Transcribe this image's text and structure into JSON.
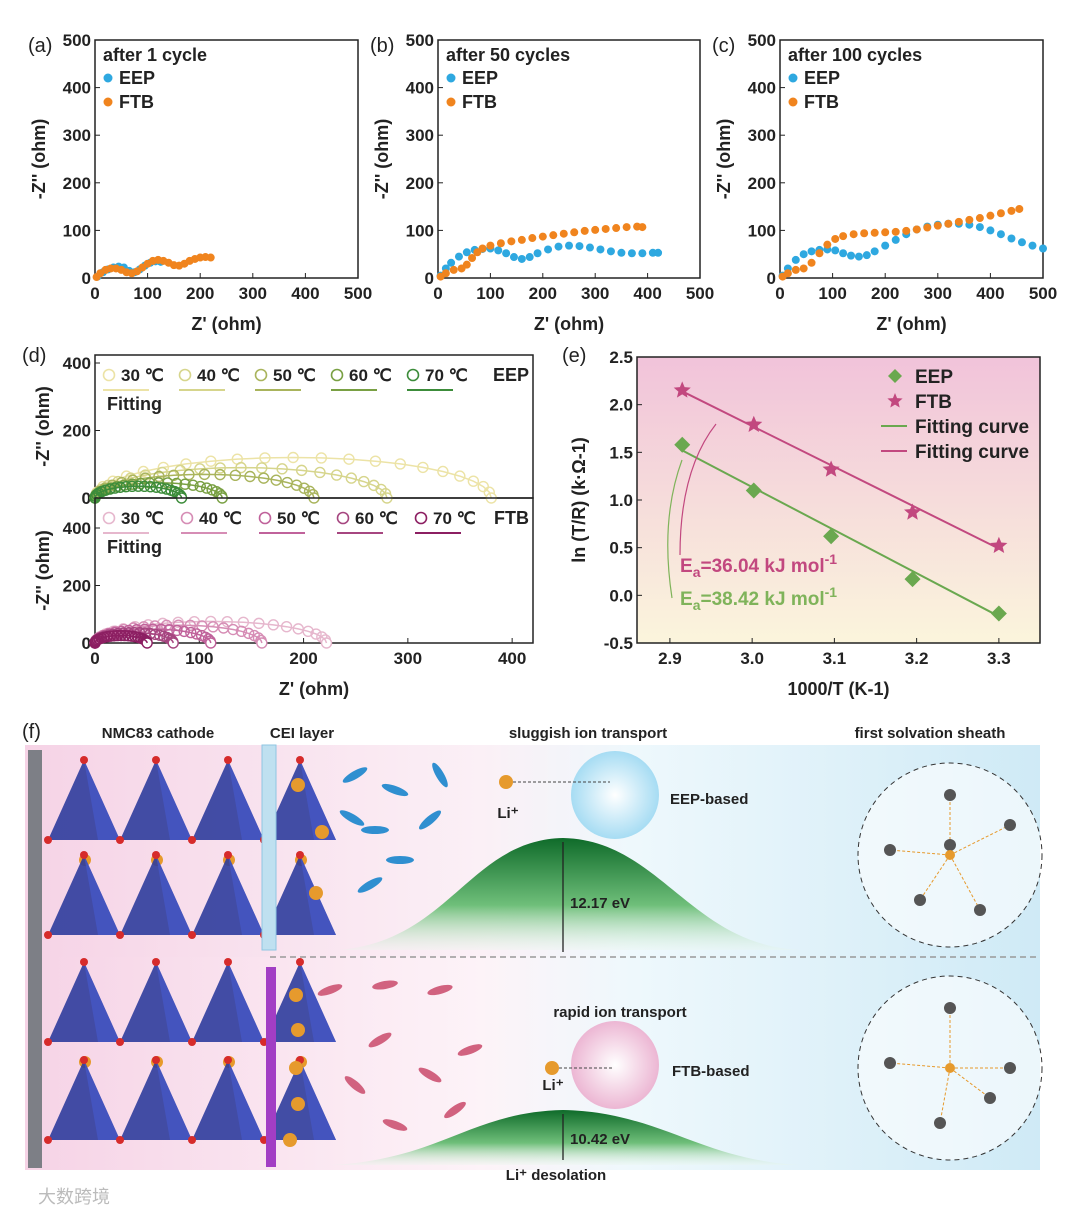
{
  "panel_labels": {
    "a": "(a)",
    "b": "(b)",
    "c": "(c)",
    "d": "(d)",
    "e": "(e)",
    "f": "(f)"
  },
  "colors": {
    "EEP": "#2ea8e0",
    "FTB": "#f0841e",
    "eep_fit": "#6aa84f",
    "ftb_fit": "#c2487f"
  },
  "chart_data": [
    {
      "type": "scatter",
      "panel": "a",
      "title": "after 1 cycle",
      "xlabel": "Z' (ohm)",
      "ylabel": "-Z'' (ohm)",
      "xlim": [
        0,
        500
      ],
      "ylim": [
        0,
        500
      ],
      "xticks": [
        0,
        100,
        200,
        300,
        400,
        500
      ],
      "yticks": [
        0,
        100,
        200,
        300,
        400,
        500
      ],
      "legend": "top-left",
      "series": [
        {
          "name": "EEP",
          "color": "#2ea8e0",
          "x": [
            5,
            15,
            25,
            35,
            45,
            55,
            65,
            75,
            85,
            95,
            105,
            115,
            125
          ],
          "y": [
            3,
            12,
            18,
            22,
            24,
            22,
            15,
            12,
            18,
            26,
            32,
            35,
            34
          ]
        },
        {
          "name": "FTB",
          "color": "#f0841e",
          "x": [
            3,
            10,
            20,
            30,
            40,
            50,
            60,
            70,
            80,
            90,
            100,
            110,
            120,
            130,
            140,
            150,
            160,
            170,
            180,
            190,
            200,
            210,
            220
          ],
          "y": [
            2,
            10,
            17,
            20,
            20,
            17,
            12,
            10,
            14,
            22,
            30,
            36,
            38,
            36,
            32,
            27,
            26,
            30,
            36,
            40,
            43,
            44,
            43
          ]
        }
      ]
    },
    {
      "type": "scatter",
      "panel": "b",
      "title": "after 50 cycles",
      "xlabel": "Z' (ohm)",
      "ylabel": "-Z'' (ohm)",
      "xlim": [
        0,
        500
      ],
      "ylim": [
        0,
        500
      ],
      "xticks": [
        0,
        100,
        200,
        300,
        400,
        500
      ],
      "yticks": [
        0,
        100,
        200,
        300,
        400,
        500
      ],
      "legend": "top-left",
      "series": [
        {
          "name": "EEP",
          "color": "#2ea8e0",
          "x": [
            5,
            15,
            25,
            40,
            55,
            70,
            85,
            100,
            115,
            130,
            145,
            160,
            175,
            190,
            210,
            230,
            250,
            270,
            290,
            310,
            330,
            350,
            370,
            390,
            410,
            420
          ],
          "y": [
            5,
            20,
            32,
            45,
            54,
            59,
            61,
            62,
            58,
            52,
            44,
            40,
            44,
            52,
            60,
            66,
            68,
            67,
            64,
            60,
            56,
            53,
            52,
            52,
            53,
            53
          ]
        },
        {
          "name": "FTB",
          "color": "#f0841e",
          "x": [
            5,
            15,
            30,
            45,
            55,
            65,
            75,
            85,
            100,
            120,
            140,
            160,
            180,
            200,
            220,
            240,
            260,
            280,
            300,
            320,
            340,
            360,
            380,
            390
          ],
          "y": [
            3,
            10,
            17,
            20,
            28,
            42,
            54,
            62,
            68,
            73,
            77,
            80,
            84,
            87,
            90,
            93,
            96,
            99,
            101,
            103,
            105,
            107,
            108,
            107
          ]
        }
      ]
    },
    {
      "type": "scatter",
      "panel": "c",
      "title": "after 100 cycles",
      "xlabel": "Z' (ohm)",
      "ylabel": "-Z'' (ohm)",
      "xlim": [
        0,
        500
      ],
      "ylim": [
        0,
        500
      ],
      "xticks": [
        0,
        100,
        200,
        300,
        400,
        500
      ],
      "yticks": [
        0,
        100,
        200,
        300,
        400,
        500
      ],
      "legend": "top-left",
      "series": [
        {
          "name": "EEP",
          "color": "#2ea8e0",
          "x": [
            5,
            15,
            30,
            45,
            60,
            75,
            90,
            105,
            120,
            135,
            150,
            165,
            180,
            200,
            220,
            240,
            260,
            280,
            300,
            320,
            340,
            360,
            380,
            400,
            420,
            440,
            460,
            480,
            500
          ],
          "y": [
            5,
            20,
            38,
            50,
            56,
            59,
            60,
            58,
            52,
            47,
            45,
            48,
            56,
            68,
            80,
            92,
            102,
            108,
            112,
            114,
            114,
            112,
            107,
            100,
            92,
            83,
            75,
            68,
            62
          ]
        },
        {
          "name": "FTB",
          "color": "#f0841e",
          "x": [
            5,
            15,
            30,
            45,
            60,
            75,
            90,
            105,
            120,
            140,
            160,
            180,
            200,
            220,
            240,
            260,
            280,
            300,
            320,
            340,
            360,
            380,
            400,
            420,
            440,
            455
          ],
          "y": [
            3,
            10,
            17,
            20,
            32,
            52,
            70,
            82,
            88,
            92,
            94,
            95,
            96,
            97,
            99,
            102,
            106,
            110,
            114,
            118,
            122,
            126,
            131,
            136,
            141,
            145
          ]
        }
      ]
    },
    {
      "type": "scatter",
      "panel": "d",
      "subtitle": "EEP",
      "xlabel": "Z' (ohm)",
      "ylabel": "-Z'' (ohm)",
      "xlim": [
        0,
        420
      ],
      "ylim": [
        0,
        400
      ],
      "xticks": [
        0,
        100,
        200,
        300,
        400
      ],
      "yticks": [
        0,
        200,
        400
      ],
      "legend": "top-left",
      "fitting_label": "Fitting",
      "series": [
        {
          "name": "30 ℃",
          "color": "#ece3a6",
          "r_intercept": 380,
          "max_z_imag": 120
        },
        {
          "name": "40 ℃",
          "color": "#d6d58c",
          "r_intercept": 280,
          "max_z_imag": 90
        },
        {
          "name": "50 ℃",
          "color": "#a9b45c",
          "r_intercept": 210,
          "max_z_imag": 70
        },
        {
          "name": "60 ℃",
          "color": "#79a043",
          "r_intercept": 122,
          "max_z_imag": 45
        },
        {
          "name": "70 ℃",
          "color": "#3c8c3a",
          "r_intercept": 83,
          "max_z_imag": 35
        }
      ]
    },
    {
      "type": "scatter",
      "panel": "d",
      "subtitle": "FTB",
      "xlabel": "Z' (ohm)",
      "ylabel": "-Z'' (ohm)",
      "xlim": [
        0,
        420
      ],
      "ylim": [
        0,
        400
      ],
      "xticks": [
        0,
        100,
        200,
        300,
        400
      ],
      "yticks": [
        0,
        200,
        400
      ],
      "legend": "top-left",
      "fitting_label": "Fitting",
      "series": [
        {
          "name": "30 ℃",
          "color": "#e6b7cd",
          "r_intercept": 222,
          "max_z_imag": 75
        },
        {
          "name": "40 ℃",
          "color": "#d68db5",
          "r_intercept": 160,
          "max_z_imag": 62
        },
        {
          "name": "50 ℃",
          "color": "#c0629b",
          "r_intercept": 111,
          "max_z_imag": 48
        },
        {
          "name": "60 ℃",
          "color": "#a64680",
          "r_intercept": 75,
          "max_z_imag": 36
        },
        {
          "name": "70 ℃",
          "color": "#8c1f62",
          "r_intercept": 50,
          "max_z_imag": 26
        }
      ]
    },
    {
      "type": "scatter",
      "panel": "e",
      "xlabel": "1000/T (K-1)",
      "ylabel": "ln (T/R) (k·Ω-1)",
      "xlim": [
        2.86,
        3.35
      ],
      "ylim": [
        -0.5,
        2.5
      ],
      "xticks": [
        2.9,
        3.0,
        3.1,
        3.2,
        3.3
      ],
      "yticks": [
        -0.5,
        0.0,
        0.5,
        1.0,
        1.5,
        2.0,
        2.5
      ],
      "xtick_labels": [
        "2.9",
        "3.0",
        "3.1",
        "3.2",
        "3.3"
      ],
      "ytick_labels": [
        "-0.5",
        "0.0",
        "0.5",
        "1.0",
        "1.5",
        "2.0",
        "2.5"
      ],
      "legend": "top-right",
      "series": [
        {
          "name": "EEP",
          "marker": "diamond",
          "color": "#6aa84f",
          "x": [
            2.915,
            3.002,
            3.096,
            3.195,
            3.3
          ],
          "y": [
            1.58,
            1.1,
            0.62,
            0.17,
            -0.19
          ]
        },
        {
          "name": "FTB",
          "marker": "star",
          "color": "#c2487f",
          "x": [
            2.915,
            3.002,
            3.096,
            3.195,
            3.3
          ],
          "y": [
            2.15,
            1.79,
            1.32,
            0.87,
            0.52
          ]
        }
      ],
      "fits": [
        {
          "name": "Fitting curve",
          "color": "#6aa84f",
          "x": [
            2.915,
            3.3
          ],
          "y": [
            1.52,
            -0.22
          ]
        },
        {
          "name": "Fitting curve",
          "color": "#c2487f",
          "x": [
            2.915,
            3.3
          ],
          "y": [
            2.14,
            0.49
          ]
        }
      ],
      "annotations": [
        {
          "text_main": "E",
          "sub": "a",
          "text_rest": "=36.04 kJ mol",
          "sup": "-1",
          "color": "#c2487f"
        },
        {
          "text_main": "E",
          "sub": "a",
          "text_rest": "=38.42 kJ mol",
          "sup": "-1",
          "color": "#7fb35a"
        }
      ]
    }
  ],
  "schematic": {
    "cathode_label": "NMC83 cathode",
    "cei_label": "CEI layer",
    "top_title": "sluggish ion transport",
    "sheath_title": "first solvation sheath",
    "eep_based": "EEP-based",
    "li_top": "Li⁺",
    "barrier_top": "12.17 eV",
    "bottom_title": "rapid ion transport",
    "ftb_based": "FTB-based",
    "li_bottom": "Li⁺",
    "barrier_bottom": "10.42 eV",
    "desolation": "Li⁺ desolation"
  },
  "watermark": "大数跨境"
}
